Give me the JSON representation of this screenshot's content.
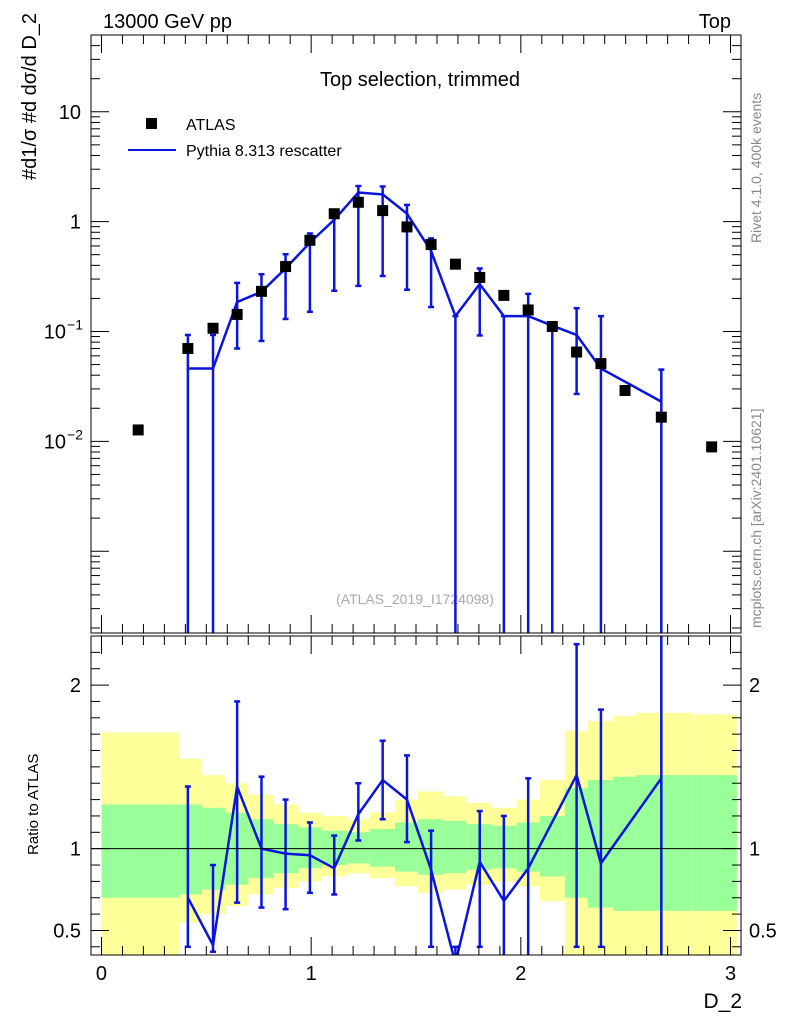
{
  "header": {
    "beam": "13000 GeV pp",
    "process": "Top"
  },
  "side_labels": {
    "rivet": "Rivet 4.1.0,  400k events",
    "site": "mcplots.cern.ch [arXiv:2401.10621]"
  },
  "chart_data": {
    "type": "line",
    "title": "Top selection, trimmed",
    "watermark": "(ATLAS_2019_I1724098)",
    "xlabel": "D_2",
    "ylabel_main": "#d1/σ #d dσ/d D_2",
    "ylabel_ratio": "Ratio to ATLAS",
    "xlim": [
      -0.05,
      3.05
    ],
    "ylim_main": [
      0.00018,
      50
    ],
    "ylim_ratio": [
      0.35,
      2.3
    ],
    "main_y_scale": "log",
    "xticks": [
      0,
      1,
      2,
      3
    ],
    "main_yticks": [
      {
        "value": 0.01,
        "label": "10",
        "exp": "−2"
      },
      {
        "value": 0.1,
        "label": "10",
        "exp": "−1"
      },
      {
        "value": 1,
        "label": "1",
        "exp": ""
      },
      {
        "value": 10,
        "label": "10",
        "exp": ""
      }
    ],
    "ratio_yticks": [
      0.5,
      1,
      2
    ],
    "legend": {
      "position": "top-left",
      "entries": [
        "ATLAS",
        "Pythia 8.313 rescatter"
      ]
    },
    "colors": {
      "data": "#000000",
      "mc": "#0a14dc",
      "band_inner": "#99ff99",
      "band_outer": "#ffff99"
    },
    "atlas": {
      "name": "ATLAS",
      "x": [
        0.175,
        0.412,
        0.532,
        0.647,
        0.763,
        0.878,
        0.994,
        1.11,
        1.225,
        1.341,
        1.457,
        1.572,
        1.688,
        1.804,
        1.919,
        2.035,
        2.15,
        2.266,
        2.382,
        2.497,
        2.67,
        2.91
      ],
      "y": [
        0.0127,
        0.07,
        0.107,
        0.143,
        0.232,
        0.39,
        0.676,
        1.18,
        1.5,
        1.26,
        0.895,
        0.62,
        0.41,
        0.31,
        0.213,
        0.157,
        0.111,
        0.065,
        0.051,
        0.029,
        0.0166,
        0.0089
      ]
    },
    "pythia": {
      "name": "Pythia 8.313 rescatter",
      "x": [
        0.412,
        0.532,
        0.647,
        0.763,
        0.878,
        0.994,
        1.11,
        1.225,
        1.341,
        1.457,
        1.572,
        1.688,
        1.804,
        1.919,
        2.035,
        2.15,
        2.266,
        2.382,
        2.67
      ],
      "y": [
        0.046,
        0.046,
        0.185,
        0.23,
        0.375,
        0.645,
        1.04,
        1.84,
        1.77,
        1.18,
        0.54,
        0.138,
        0.27,
        0.138,
        0.138,
        0.113,
        0.093,
        0.046,
        0.023
      ],
      "err_lo": [
        0.046,
        0.046,
        0.115,
        0.148,
        0.245,
        0.494,
        0.805,
        1.58,
        1.45,
        0.94,
        0.373,
        0.138,
        0.178,
        0.138,
        0.138,
        0.113,
        0.066,
        0.046,
        0.023
      ],
      "err_hi": [
        0.093,
        0.093,
        0.277,
        0.332,
        0.505,
        0.78,
        1.26,
        2.11,
        2.09,
        1.42,
        0.704,
        0.138,
        0.375,
        0.138,
        0.22,
        0.113,
        0.163,
        0.138,
        0.045
      ]
    },
    "ratio": {
      "x": [
        0.412,
        0.532,
        0.647,
        0.763,
        0.878,
        0.994,
        1.11,
        1.225,
        1.341,
        1.457,
        1.572,
        1.688,
        1.804,
        1.919,
        2.035,
        2.266,
        2.382,
        2.67
      ],
      "y": [
        0.7,
        0.41,
        1.38,
        1.0,
        0.97,
        0.96,
        0.88,
        1.21,
        1.42,
        1.3,
        0.87,
        0.3,
        0.92,
        0.68,
        0.88,
        1.45,
        0.91,
        1.43
      ],
      "err_lo": [
        0.4,
        0.37,
        0.67,
        0.64,
        0.63,
        0.73,
        0.72,
        1.05,
        1.18,
        1.04,
        0.4,
        0.0,
        0.4,
        0.0,
        0.0,
        0.4,
        0.4,
        0.0
      ],
      "err_hi": [
        1.38,
        0.9,
        1.9,
        1.44,
        1.3,
        1.16,
        1.08,
        1.4,
        1.66,
        1.57,
        1.11,
        0.4,
        1.23,
        1.2,
        1.43,
        2.25,
        1.85,
        2.75
      ]
    },
    "bands": [
      {
        "x0": 0.0,
        "x1": 0.37,
        "in_lo": 0.7,
        "in_hi": 1.27,
        "out_lo": 0.35,
        "out_hi": 1.71
      },
      {
        "x0": 0.37,
        "x1": 0.48,
        "in_lo": 0.72,
        "in_hi": 1.27,
        "out_lo": 0.55,
        "out_hi": 1.55
      },
      {
        "x0": 0.48,
        "x1": 0.59,
        "in_lo": 0.75,
        "in_hi": 1.25,
        "out_lo": 0.6,
        "out_hi": 1.45
      },
      {
        "x0": 0.59,
        "x1": 0.7,
        "in_lo": 0.78,
        "in_hi": 1.22,
        "out_lo": 0.65,
        "out_hi": 1.4
      },
      {
        "x0": 0.7,
        "x1": 0.82,
        "in_lo": 0.82,
        "in_hi": 1.18,
        "out_lo": 0.72,
        "out_hi": 1.33
      },
      {
        "x0": 0.82,
        "x1": 0.94,
        "in_lo": 0.85,
        "in_hi": 1.15,
        "out_lo": 0.76,
        "out_hi": 1.27
      },
      {
        "x0": 0.94,
        "x1": 1.05,
        "in_lo": 0.88,
        "in_hi": 1.13,
        "out_lo": 0.8,
        "out_hi": 1.22
      },
      {
        "x0": 1.05,
        "x1": 1.17,
        "in_lo": 0.9,
        "in_hi": 1.11,
        "out_lo": 0.83,
        "out_hi": 1.2
      },
      {
        "x0": 1.17,
        "x1": 1.28,
        "in_lo": 0.91,
        "in_hi": 1.1,
        "out_lo": 0.85,
        "out_hi": 1.18
      },
      {
        "x0": 1.28,
        "x1": 1.4,
        "in_lo": 0.89,
        "in_hi": 1.12,
        "out_lo": 0.82,
        "out_hi": 1.22
      },
      {
        "x0": 1.4,
        "x1": 1.51,
        "in_lo": 0.86,
        "in_hi": 1.16,
        "out_lo": 0.77,
        "out_hi": 1.3
      },
      {
        "x0": 1.51,
        "x1": 1.63,
        "in_lo": 0.84,
        "in_hi": 1.18,
        "out_lo": 0.73,
        "out_hi": 1.35
      },
      {
        "x0": 1.63,
        "x1": 1.74,
        "in_lo": 0.85,
        "in_hi": 1.17,
        "out_lo": 0.75,
        "out_hi": 1.32
      },
      {
        "x0": 1.74,
        "x1": 1.86,
        "in_lo": 0.87,
        "in_hi": 1.15,
        "out_lo": 0.78,
        "out_hi": 1.28
      },
      {
        "x0": 1.86,
        "x1": 1.98,
        "in_lo": 0.88,
        "in_hi": 1.14,
        "out_lo": 0.8,
        "out_hi": 1.25
      },
      {
        "x0": 1.98,
        "x1": 2.09,
        "in_lo": 0.86,
        "in_hi": 1.16,
        "out_lo": 0.77,
        "out_hi": 1.3
      },
      {
        "x0": 2.09,
        "x1": 2.21,
        "in_lo": 0.83,
        "in_hi": 1.2,
        "out_lo": 0.68,
        "out_hi": 1.42
      },
      {
        "x0": 2.21,
        "x1": 2.32,
        "in_lo": 0.7,
        "in_hi": 1.37,
        "out_lo": 0.35,
        "out_hi": 1.72
      },
      {
        "x0": 2.32,
        "x1": 2.44,
        "in_lo": 0.64,
        "in_hi": 1.42,
        "out_lo": 0.35,
        "out_hi": 1.78
      },
      {
        "x0": 2.44,
        "x1": 2.55,
        "in_lo": 0.62,
        "in_hi": 1.44,
        "out_lo": 0.35,
        "out_hi": 1.81
      },
      {
        "x0": 2.55,
        "x1": 2.82,
        "in_lo": 0.62,
        "in_hi": 1.45,
        "out_lo": 0.35,
        "out_hi": 1.83
      },
      {
        "x0": 2.82,
        "x1": 3.03,
        "in_lo": 0.62,
        "in_hi": 1.45,
        "out_lo": 0.35,
        "out_hi": 1.82
      }
    ]
  }
}
